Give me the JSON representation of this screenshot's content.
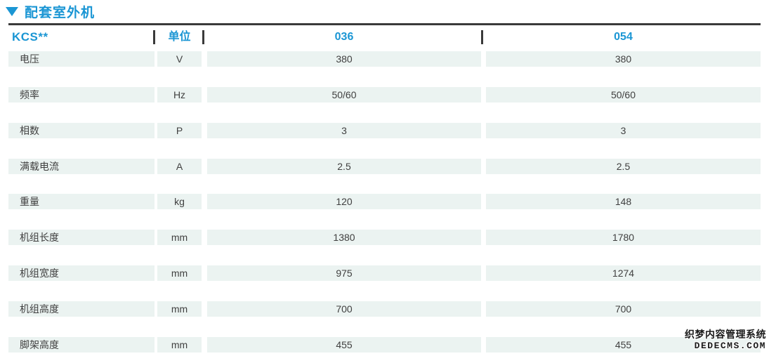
{
  "title": {
    "marker": "triangle-down",
    "text": "配套室外机"
  },
  "colors": {
    "accent_blue": "#1b96d4",
    "rule_dark": "#3a3a3a",
    "row_band": "#ebf3f1",
    "body_text": "#404040"
  },
  "header": {
    "model": "KCS**",
    "unit": "单位",
    "col1": "036",
    "col2": "054"
  },
  "rows": [
    {
      "label": "电压",
      "unit": "V",
      "v036": "380",
      "v054": "380"
    },
    {
      "label": "频率",
      "unit": "Hz",
      "v036": "50/60",
      "v054": "50/60"
    },
    {
      "label": "相数",
      "unit": "P",
      "v036": "3",
      "v054": "3"
    },
    {
      "label": "满载电流",
      "unit": "A",
      "v036": "2.5",
      "v054": "2.5"
    },
    {
      "label": "重量",
      "unit": "kg",
      "v036": "120",
      "v054": "148"
    },
    {
      "label": "机组长度",
      "unit": "mm",
      "v036": "1380",
      "v054": "1780"
    },
    {
      "label": "机组宽度",
      "unit": "mm",
      "v036": "975",
      "v054": "1274"
    },
    {
      "label": "机组高度",
      "unit": "mm",
      "v036": "700",
      "v054": "700"
    },
    {
      "label": "脚架高度",
      "unit": "mm",
      "v036": "455",
      "v054": "455"
    }
  ],
  "watermark": {
    "line1": "织梦内容管理系统",
    "line2": "DEDECMS.COM"
  }
}
